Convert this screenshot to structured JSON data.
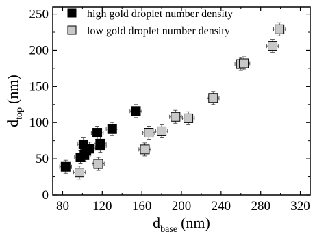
{
  "chart_data": {
    "type": "scatter",
    "title": "",
    "xlabel": {
      "main": "d",
      "sub": "base",
      "unit": "(nm)"
    },
    "ylabel": {
      "main": "d",
      "sub": "top",
      "unit": "(nm)"
    },
    "xlim": [
      70,
      330
    ],
    "ylim": [
      0,
      260
    ],
    "xticks": [
      80,
      120,
      160,
      200,
      240,
      280,
      320
    ],
    "yticks": [
      0,
      50,
      100,
      150,
      200,
      250
    ],
    "grid": false,
    "legend_position": "top-left",
    "series": [
      {
        "name": "high gold droplet number density",
        "marker": "square",
        "color": "#000000",
        "points": [
          {
            "x": 83,
            "y": 39,
            "xerr": 6,
            "yerr": 9
          },
          {
            "x": 98,
            "y": 52,
            "xerr": 6,
            "yerr": 9
          },
          {
            "x": 101,
            "y": 70,
            "xerr": 6,
            "yerr": 9
          },
          {
            "x": 102,
            "y": 55,
            "xerr": 6,
            "yerr": 9
          },
          {
            "x": 104,
            "y": 62,
            "xerr": 6,
            "yerr": 9
          },
          {
            "x": 107,
            "y": 64,
            "xerr": 6,
            "yerr": 9
          },
          {
            "x": 115,
            "y": 86,
            "xerr": 6,
            "yerr": 9
          },
          {
            "x": 118,
            "y": 71,
            "xerr": 6,
            "yerr": 9
          },
          {
            "x": 118,
            "y": 68,
            "xerr": 6,
            "yerr": 9
          },
          {
            "x": 130,
            "y": 91,
            "xerr": 6,
            "yerr": 9
          },
          {
            "x": 154,
            "y": 116,
            "xerr": 6,
            "yerr": 9
          }
        ]
      },
      {
        "name": "low gold droplet number density",
        "marker": "square",
        "color": "#c8c8c8",
        "points": [
          {
            "x": 97,
            "y": 31,
            "xerr": 6,
            "yerr": 9
          },
          {
            "x": 116,
            "y": 43,
            "xerr": 6,
            "yerr": 9
          },
          {
            "x": 163,
            "y": 63,
            "xerr": 6,
            "yerr": 9
          },
          {
            "x": 167,
            "y": 86,
            "xerr": 6,
            "yerr": 9
          },
          {
            "x": 180,
            "y": 88,
            "xerr": 6,
            "yerr": 9
          },
          {
            "x": 194,
            "y": 108,
            "xerr": 6,
            "yerr": 9
          },
          {
            "x": 207,
            "y": 106,
            "xerr": 6,
            "yerr": 9
          },
          {
            "x": 232,
            "y": 134,
            "xerr": 6,
            "yerr": 9
          },
          {
            "x": 260,
            "y": 181,
            "xerr": 6,
            "yerr": 9
          },
          {
            "x": 263,
            "y": 182,
            "xerr": 6,
            "yerr": 9
          },
          {
            "x": 292,
            "y": 206,
            "xerr": 6,
            "yerr": 9
          },
          {
            "x": 299,
            "y": 229,
            "xerr": 6,
            "yerr": 9
          }
        ]
      }
    ]
  }
}
